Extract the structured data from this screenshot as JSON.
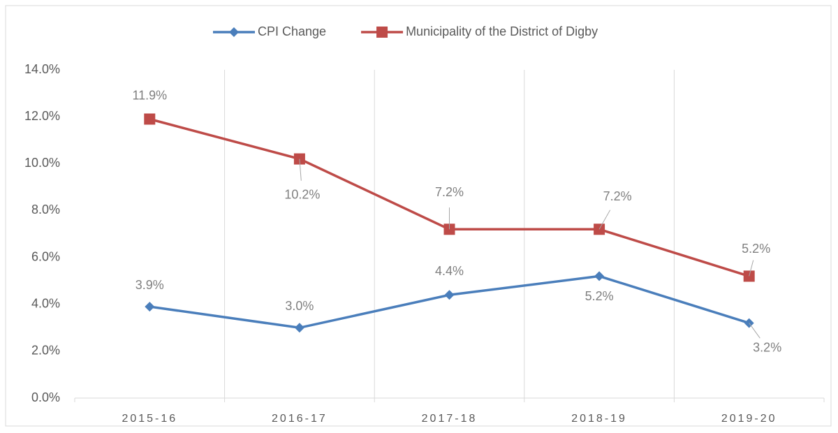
{
  "chart_data": {
    "type": "line",
    "categories": [
      "2015-16",
      "2016-17",
      "2017-18",
      "2018-19",
      "2019-20"
    ],
    "series": [
      {
        "name": "CPI Change",
        "color": "#4a7ebb",
        "marker": "diamond",
        "values": [
          3.9,
          3.0,
          4.4,
          5.2,
          3.2
        ],
        "value_labels": [
          "3.9%",
          "3.0%",
          "4.4%",
          "5.2%",
          "3.2%"
        ]
      },
      {
        "name": "Municipality of the District of Digby",
        "color": "#be4b48",
        "marker": "square",
        "values": [
          11.9,
          10.2,
          7.2,
          7.2,
          5.2
        ],
        "value_labels": [
          "11.9%",
          "10.2%",
          "7.2%",
          "7.2%",
          "5.2%"
        ]
      }
    ],
    "ylim": [
      0,
      14
    ],
    "yticks": [
      {
        "value": 0,
        "label": "0.0%"
      },
      {
        "value": 2,
        "label": "2.0%"
      },
      {
        "value": 4,
        "label": "4.0%"
      },
      {
        "value": 6,
        "label": "6.0%"
      },
      {
        "value": 8,
        "label": "8.0%"
      },
      {
        "value": 10,
        "label": "10.0%"
      },
      {
        "value": 12,
        "label": "12.0%"
      },
      {
        "value": 14,
        "label": "14.0%"
      }
    ],
    "grid": false,
    "legend": "top"
  }
}
